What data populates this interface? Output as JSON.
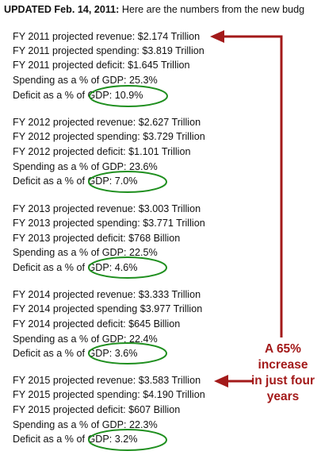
{
  "header": {
    "bold": "UPDATED Feb. 14, 2011:",
    "text": " Here are the numbers from the new budg"
  },
  "years": [
    {
      "lines": [
        "FY 2011 projected revenue: $2.174 Trillion",
        "FY 2011 projected spending: $3.819 Trillion",
        "FY 2011 projected deficit: $1.645 Trillion",
        "Spending as a % of GDP: 25.3%",
        "Deficit as a % of GDP: 10.9%"
      ]
    },
    {
      "lines": [
        "FY 2012 projected revenue: $2.627 Trillion",
        "FY 2012 projected spending: $3.729 Trillion",
        "FY 2012 projected deficit: $1.101 Trillion",
        "Spending as a % of GDP: 23.6%",
        "Deficit as a % of GDP: 7.0%"
      ]
    },
    {
      "lines": [
        "FY 2013 projected revenue: $3.003 Trillion",
        "FY 2013 projected spending: $3.771 Trillion",
        "FY 2013 projected deficit: $768 Billion",
        "Spending as a % of GDP: 22.5%",
        "Deficit as a % of GDP: 4.6%"
      ]
    },
    {
      "lines": [
        "FY 2014 projected revenue: $3.333 Trillion",
        "FY 2014 projected spending $3.977 Trillion",
        "FY 2014 projected deficit: $645 Billion",
        "Spending as a % of GDP: 22.4%",
        "Deficit as a % of GDP: 3.6%"
      ]
    },
    {
      "lines": [
        "FY 2015 projected revenue: $3.583 Trillion",
        "FY 2015 projected spending: $4.190 Trillion",
        "FY 2015 projected deficit: $607 Billion",
        "Spending as a % of GDP: 22.3%",
        "Deficit as a % of GDP: 3.2%"
      ]
    }
  ],
  "annotation": {
    "lines": [
      "A 65%",
      "increase",
      "in just four",
      "years"
    ],
    "color": "#a31a1a",
    "highlight_color": "#1f8f1f"
  }
}
